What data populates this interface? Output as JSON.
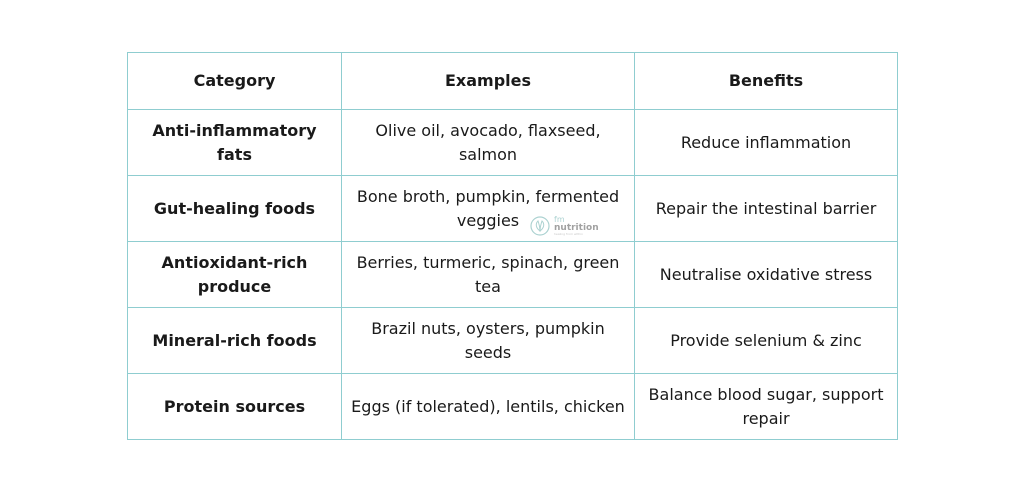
{
  "table": {
    "headers": [
      "Category",
      "Examples",
      "Benefits"
    ],
    "rows": [
      {
        "category": "Anti-inflammatory fats",
        "examples": "Olive oil, avocado, flaxseed, salmon",
        "benefits": "Reduce inflammation"
      },
      {
        "category": "Gut-healing foods",
        "examples": "Bone broth, pumpkin, fermented veggies",
        "benefits": "Repair the intestinal barrier"
      },
      {
        "category": "Antioxidant-rich produce",
        "examples": "Berries, turmeric, spinach, green tea",
        "benefits": "Neutralise oxidative stress"
      },
      {
        "category": "Mineral-rich foods",
        "examples": "Brazil nuts, oysters, pumpkin seeds",
        "benefits": "Provide selenium & zinc"
      },
      {
        "category": "Protein sources",
        "examples": "Eggs (if tolerated), lentils, chicken",
        "benefits": "Balance blood sugar, support repair"
      }
    ]
  },
  "watermark": {
    "line1": "fm",
    "line2": "nutrition",
    "line3": "healing from within",
    "icon": "leaf-logo-icon",
    "color": "#6aaead"
  },
  "colors": {
    "border": "#8fcdd0",
    "text": "#1a1a1a"
  }
}
